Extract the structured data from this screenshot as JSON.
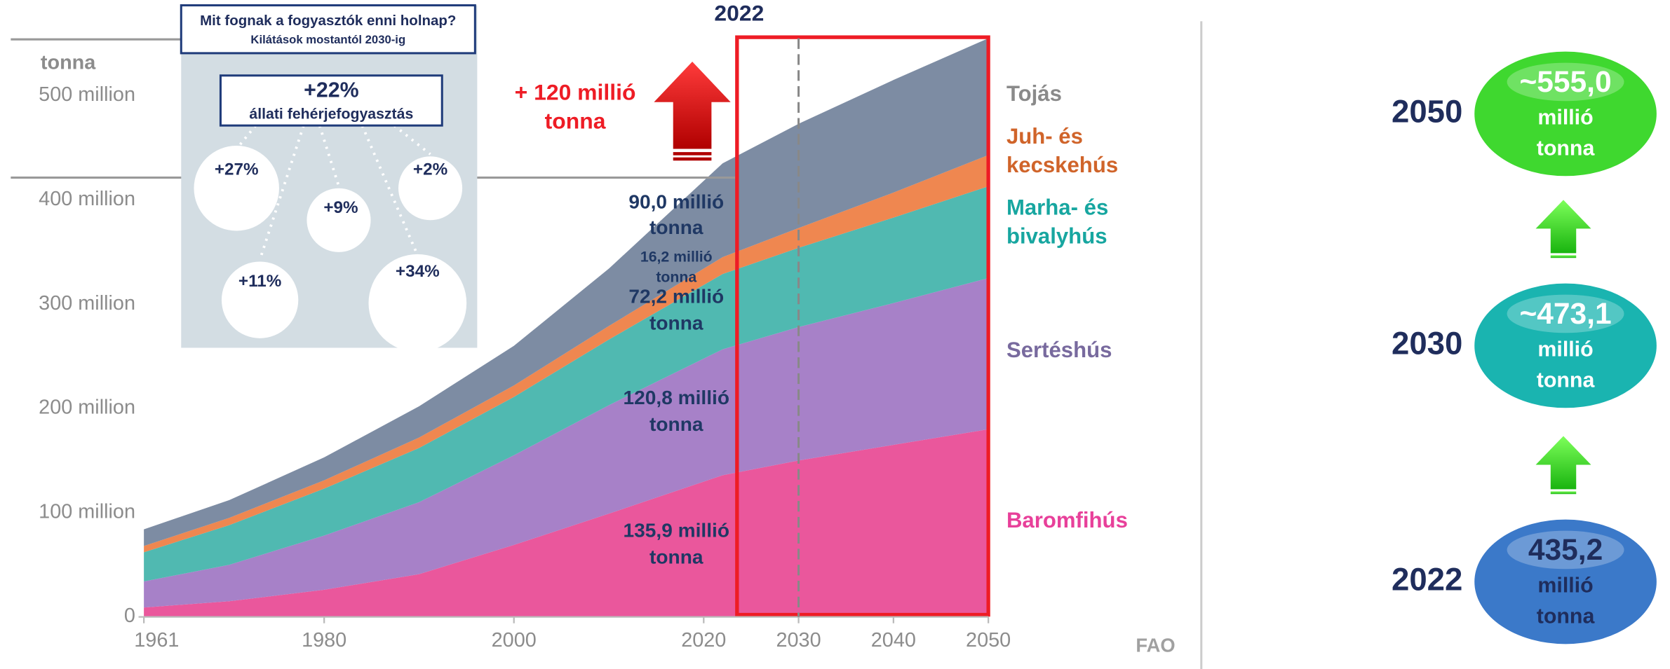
{
  "chart_data": {
    "type": "stacked-area",
    "y_label": "tonna",
    "x": [
      1961,
      1970,
      1980,
      1990,
      2000,
      2010,
      2022,
      2030,
      2040,
      2050
    ],
    "xlim": [
      1961,
      2050
    ],
    "xticks": [
      1961,
      1980,
      2000,
      2020,
      2030,
      2040,
      2050
    ],
    "ylim": [
      0,
      555000000
    ],
    "yticks": [
      0,
      {
        "value": 100000000,
        "label": "100 million"
      },
      {
        "value": 200000000,
        "label": "200 million"
      },
      {
        "value": 300000000,
        "label": "300 million"
      },
      {
        "value": 400000000,
        "label": "400 million"
      },
      {
        "value": 500000000,
        "label": "500 million"
      }
    ],
    "series": [
      {
        "name": "Baromfihús",
        "color": "#ea579c",
        "label_color": "#e8409a",
        "values": [
          9000000,
          15000000,
          26000000,
          41000000,
          69000000,
          99000000,
          135900000,
          150000000,
          165000000,
          180000000
        ],
        "value_labels": [
          null,
          null,
          null,
          null,
          null,
          null,
          "135,9 millió tonna",
          null,
          null,
          null
        ]
      },
      {
        "name": "Sertéshús",
        "color": "#a781c8",
        "label_color": "#786a9e",
        "values": [
          25000000,
          35000000,
          52000000,
          69000000,
          86000000,
          104000000,
          120800000,
          128000000,
          136000000,
          145000000
        ],
        "value_labels": [
          null,
          null,
          null,
          null,
          null,
          null,
          "120,8 millió tonna",
          null,
          null,
          null
        ]
      },
      {
        "name": "Marha- és bivalyhús",
        "color": "#50b9b1",
        "label_color": "#17a6a0",
        "values": [
          28000000,
          38000000,
          45000000,
          52000000,
          56000000,
          63000000,
          72200000,
          76000000,
          82000000,
          88000000
        ],
        "value_labels": [
          null,
          null,
          null,
          null,
          null,
          null,
          "72,2 millió tonna",
          null,
          null,
          null
        ]
      },
      {
        "name": "Juh- és kecskehús",
        "color": "#ef8750",
        "label_color": "#d0642a",
        "values": [
          6000000,
          7000000,
          8000000,
          10000000,
          11000000,
          13000000,
          16200000,
          19000000,
          24000000,
          30000000
        ],
        "value_labels": [
          null,
          null,
          null,
          null,
          null,
          null,
          "16,2 millió tonna",
          null,
          null,
          null
        ]
      },
      {
        "name": "Tojás",
        "color": "#7d8ca3",
        "label_color": "#8a8a8a",
        "values": [
          16000000,
          17000000,
          22000000,
          30000000,
          38000000,
          55000000,
          90000000,
          100000000,
          108000000,
          112000000
        ],
        "value_labels": [
          null,
          null,
          null,
          null,
          null,
          null,
          "90,0 millió tonna",
          null,
          null,
          null
        ]
      }
    ],
    "highlight_year": "2022",
    "growth_label": "+ 120 millió tonna",
    "source": "FAO"
  },
  "inset": {
    "title": "Mit fognak a fogyasztók enni holnap?",
    "subtitle": "Kilátások mostantól 2030-ig",
    "headline": "+22%",
    "headline_caption": "állati fehérjefogyasztás",
    "bubbles": [
      "+27%",
      "+9%",
      "+2%",
      "+11%",
      "+34%"
    ]
  },
  "totals": [
    {
      "year": "2050",
      "value": "~555,0",
      "unit": "millió tonna",
      "color": "#3fd82f"
    },
    {
      "year": "2030",
      "value": "~473,1",
      "unit": "millió tonna",
      "color": "#1ab4b0"
    },
    {
      "year": "2022",
      "value": "435,2",
      "unit": "millió tonna",
      "color": "#3b79c9"
    }
  ]
}
